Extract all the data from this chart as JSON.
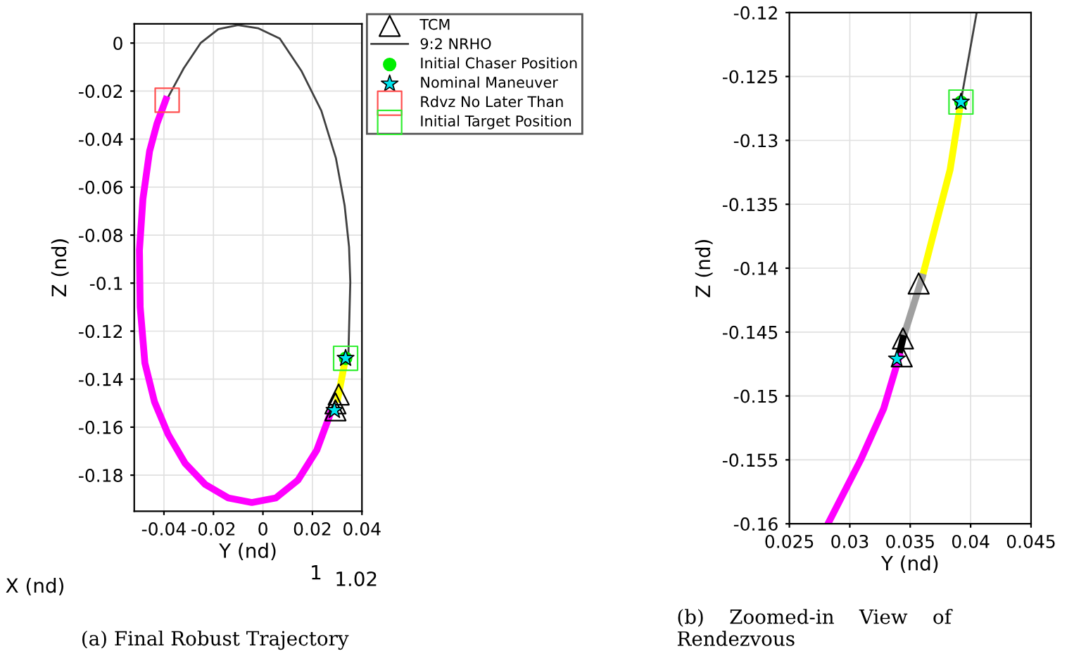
{
  "chart_data": [
    {
      "type": "line",
      "xlabel": "Y (nd)",
      "ylabel": "Z (nd)",
      "xlim": [
        -0.052,
        0.04
      ],
      "ylim": [
        -0.195,
        0.008
      ],
      "xticks": [
        -0.04,
        -0.02,
        0,
        0.02,
        0.04
      ],
      "yticks": [
        0,
        -0.02,
        -0.04,
        -0.06,
        -0.08,
        -0.1,
        -0.12,
        -0.14,
        -0.16,
        -0.18
      ],
      "grid": true,
      "legend": "top right",
      "annotations": [
        "X (nd)",
        "1",
        "1.02",
        "(a) Final Robust Trajectory"
      ],
      "series": [
        {
          "name": "TCM",
          "type": "scatter",
          "marker": "triangle",
          "color": "#000000",
          "x": [
            0.0306,
            0.0293,
            0.0293
          ],
          "values": [
            -0.1464,
            -0.1501,
            -0.153
          ]
        },
        {
          "name": "9:2 NRHO",
          "color": "#404040",
          "x": [
            -0.0383,
            -0.032,
            -0.0252,
            -0.018,
            -0.0101,
            -0.002,
            0.0068,
            0.0155,
            0.0236,
            0.0295,
            0.033,
            0.0348,
            0.0353,
            0.0345
          ],
          "values": [
            -0.0225,
            -0.0105,
            0,
            0.0058,
            0.0075,
            0.0062,
            0.0019,
            -0.0115,
            -0.0282,
            -0.048,
            -0.0676,
            -0.085,
            -0.0995,
            -0.131
          ]
        },
        {
          "color": "#ff00ff",
          "x": [
            -0.0392,
            -0.0428,
            -0.0458,
            -0.0485,
            -0.0499,
            -0.0496,
            -0.0477,
            -0.0438,
            -0.0383,
            -0.0315,
            -0.0233,
            -0.014,
            -0.0045,
            0.0052,
            0.0142,
            0.0218,
            0.0274
          ],
          "values": [
            -0.0235,
            -0.0335,
            -0.045,
            -0.065,
            -0.0863,
            -0.11,
            -0.1333,
            -0.1495,
            -0.163,
            -0.175,
            -0.1839,
            -0.1895,
            -0.1914,
            -0.1895,
            -0.182,
            -0.1695,
            -0.1539
          ]
        },
        {
          "color": "#ffff00",
          "x": [
            0.0334,
            0.0302
          ],
          "values": [
            -0.1313,
            -0.1483
          ]
        },
        {
          "name": "Initial Chaser Position",
          "type": "scatter",
          "marker": "circle",
          "color": "#00ee00",
          "x": [
            0.0334
          ],
          "values": [
            -0.1313
          ]
        },
        {
          "name": "Nominal Maneuver",
          "type": "scatter",
          "marker": "star",
          "color": "#00e5ee",
          "x": [
            0.0334,
            0.0289
          ],
          "values": [
            -0.1313,
            -0.153
          ]
        },
        {
          "name": "Rdvz No Later Than",
          "type": "scatter",
          "marker": "square",
          "color": "#ff5050",
          "x": [
            -0.0387
          ],
          "values": [
            -0.0238
          ]
        },
        {
          "name": "Initial Target Position",
          "type": "scatter",
          "marker": "square",
          "color": "#33ee33",
          "x": [
            0.0334
          ],
          "values": [
            -0.1313
          ]
        }
      ]
    },
    {
      "type": "line",
      "xlabel": "Y (nd)",
      "ylabel": "Z (nd)",
      "xlim": [
        0.025,
        0.045
      ],
      "ylim": [
        -0.16,
        -0.12
      ],
      "xticks": [
        0.025,
        0.03,
        0.035,
        0.04,
        0.045
      ],
      "yticks": [
        -0.16,
        -0.155,
        -0.15,
        -0.145,
        -0.14,
        -0.135,
        -0.13,
        -0.125,
        -0.12
      ],
      "grid": true,
      "annotations": [
        "(b)    Zoomed-in    View    of Rendezvous"
      ],
      "series": [
        {
          "type": "scatter",
          "marker": "triangle",
          "color": "#000000",
          "x": [
            0.0357,
            0.0344,
            0.0343
          ],
          "values": [
            -0.1412,
            -0.1455,
            -0.1469
          ]
        },
        {
          "color": "#404040",
          "x": [
            0.0405,
            0.0392
          ],
          "values": [
            -0.12,
            -0.1269
          ]
        },
        {
          "color": "#ffff00",
          "x": [
            0.0392,
            0.0383,
            0.0372,
            0.036
          ],
          "values": [
            -0.1269,
            -0.1323,
            -0.1363,
            -0.1407
          ]
        },
        {
          "color": "#a0a0a0",
          "x": [
            0.036,
            0.0344
          ],
          "values": [
            -0.1407,
            -0.1455
          ]
        },
        {
          "color": "#000000",
          "x": [
            0.0344,
            0.0341
          ],
          "values": [
            -0.1455,
            -0.1467
          ]
        },
        {
          "color": "#ff00ff",
          "x": [
            0.0341,
            0.0328,
            0.0309,
            0.0283
          ],
          "values": [
            -0.1469,
            -0.151,
            -0.155,
            -0.1598
          ]
        },
        {
          "type": "scatter",
          "marker": "circle",
          "color": "#00ee00",
          "x": [
            0.0392
          ],
          "values": [
            -0.127
          ]
        },
        {
          "type": "scatter",
          "marker": "star",
          "color": "#00e5ee",
          "x": [
            0.0392,
            0.0339
          ],
          "values": [
            -0.127,
            -0.1471
          ]
        },
        {
          "type": "scatter",
          "marker": "square",
          "color": "#33ee33",
          "x": [
            0.0392
          ],
          "values": [
            -0.127
          ]
        }
      ]
    }
  ]
}
